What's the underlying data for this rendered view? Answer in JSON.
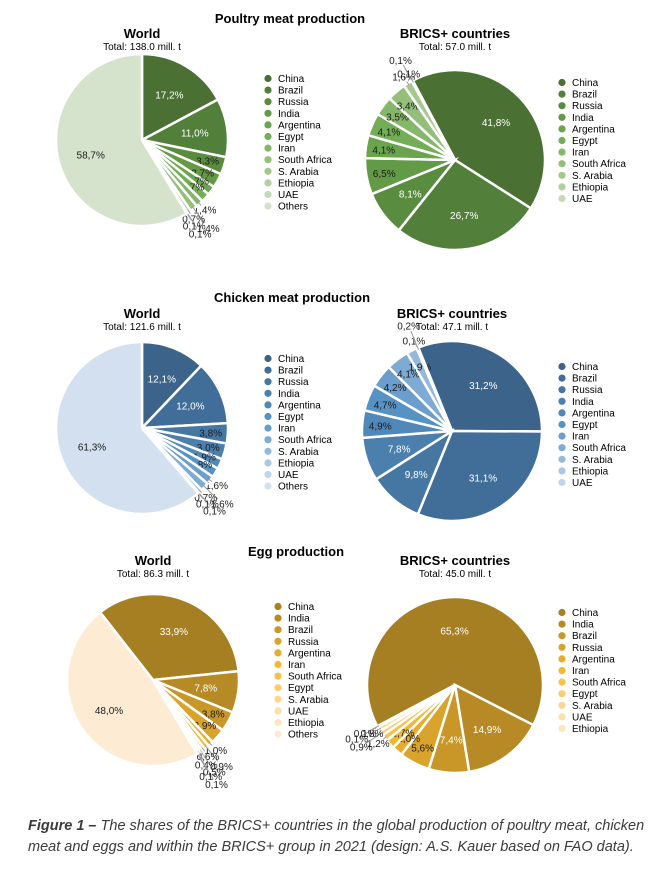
{
  "caption": {
    "label": "Figure 1 –",
    "text": " The shares of the BRICS+ countries in the global production of poultry meat, chicken meat and eggs and within the BRICS+ group in 2021 (design: A.S. Kauer based on FAO data)."
  },
  "chart_data": [
    {
      "type": "pie",
      "section": "Poultry meat production",
      "title": "World",
      "subtitle": "Total: 138.0 mill. t",
      "categories": [
        "China",
        "Brazil",
        "Russia",
        "India",
        "Argentina",
        "Egypt",
        "Iran",
        "South Africa",
        "S. Arabia",
        "Ethiopia",
        "UAE",
        "Others"
      ],
      "values": [
        17.2,
        11.0,
        3.3,
        2.7,
        1.7,
        1.7,
        1.4,
        1.4,
        0.7,
        0.1,
        0.1,
        58.7
      ],
      "labels": [
        "17,2%",
        "11,0%",
        "3,3%",
        "2,7%",
        "1,7%",
        "1,7%",
        "1,4%",
        "1,4%",
        "0,7%",
        "0,1%",
        "0,1%",
        "58,7%"
      ],
      "colors": [
        "#4a7034",
        "#52803a",
        "#5a8c3f",
        "#639a45",
        "#6aa44b",
        "#73ad55",
        "#84b767",
        "#93bf7a",
        "#a3c98c",
        "#b3d1a0",
        "#c4dbb5",
        "#d5e2cc"
      ],
      "legend": "right"
    },
    {
      "type": "pie",
      "section": "Poultry meat production",
      "title": "BRICS+ countries",
      "subtitle": "Total: 57.0 mill. t",
      "categories": [
        "China",
        "Brazil",
        "Russia",
        "India",
        "Argentina",
        "Egypt",
        "Iran",
        "South Africa",
        "S. Arabia",
        "Ethiopia",
        "UAE"
      ],
      "values": [
        41.8,
        26.7,
        8.1,
        6.5,
        4.1,
        4.1,
        3.5,
        3.4,
        1.6,
        0.1,
        0.1
      ],
      "labels": [
        "41,8%",
        "26,7%",
        "8,1%",
        "6,5%",
        "4,1%",
        "4,1%",
        "3,5%",
        "3,4%",
        "1,6%",
        "0,1%",
        "0,1%"
      ],
      "colors": [
        "#4a7034",
        "#52803a",
        "#5a8c3f",
        "#639a45",
        "#6aa44b",
        "#73ad55",
        "#84b767",
        "#93bf7a",
        "#a3c98c",
        "#b3d1a0",
        "#c4dbb5"
      ],
      "legend": "right"
    },
    {
      "type": "pie",
      "section": "Chicken meat production",
      "title": "World",
      "subtitle": "Total: 121.6 mill. t",
      "categories": [
        "China",
        "Brazil",
        "Russia",
        "India",
        "Argentina",
        "Egypt",
        "Iran",
        "South Africa",
        "S. Arabia",
        "Ethiopia",
        "UAE",
        "Others"
      ],
      "values": [
        12.1,
        12.0,
        3.8,
        3.0,
        1.9,
        1.8,
        1.6,
        1.6,
        0.7,
        0.1,
        0.1,
        61.3
      ],
      "labels": [
        "12,1%",
        "12,0%",
        "3,8%",
        "3,0%",
        "1,9%",
        "1,8%",
        "1,6%",
        "1,6%",
        "0,7%",
        "0,1%",
        "0,1%",
        "61,3%"
      ],
      "colors": [
        "#3c6389",
        "#416e98",
        "#4677a3",
        "#4b80ae",
        "#5088ba",
        "#5792c4",
        "#6a9ecc",
        "#7eabd3",
        "#94badb",
        "#a9c7e2",
        "#bed5e9",
        "#d2e0ef"
      ],
      "legend": "right"
    },
    {
      "type": "pie",
      "section": "Chicken meat production",
      "title": "BRICS+ countries",
      "subtitle": "Total: 47.1 mill. t",
      "categories": [
        "China",
        "Brazil",
        "Russia",
        "India",
        "Argentina",
        "Egypt",
        "Iran",
        "South Africa",
        "S. Arabia",
        "Ethiopia",
        "UAE"
      ],
      "values": [
        31.2,
        31.1,
        9.8,
        7.8,
        4.9,
        4.7,
        4.2,
        4.1,
        1.9,
        0.1,
        0.2
      ],
      "labels": [
        "31,2%",
        "31,1%",
        "9,8%",
        "7,8%",
        "4,9%",
        "4,7%",
        "4,2%",
        "4,1%",
        "1,9%",
        "0,1%",
        "0,2%"
      ],
      "colors": [
        "#3c6389",
        "#416e98",
        "#4677a3",
        "#4b80ae",
        "#5088ba",
        "#5792c4",
        "#6a9ecc",
        "#7eabd3",
        "#94badb",
        "#a9c7e2",
        "#bed5e9"
      ],
      "legend": "right"
    },
    {
      "type": "pie",
      "section": "Egg production",
      "title": "World",
      "subtitle": "Total: 86.3 mill. t",
      "categories": [
        "China",
        "India",
        "Brazil",
        "Russia",
        "Argentina",
        "Iran",
        "South Africa",
        "Egypt",
        "S. Arabia",
        "UAE",
        "Ethiopia",
        "Others"
      ],
      "values": [
        33.9,
        7.8,
        3.8,
        2.9,
        1.0,
        0.9,
        0.6,
        0.5,
        0.4,
        0.1,
        0.1,
        48.0
      ],
      "labels": [
        "33,9%",
        "7,8%",
        "3,8%",
        "2,9%",
        "1,0%",
        "0,9%",
        "0,6%",
        "0,5%",
        "0,4%",
        "0,1%",
        "0,1%",
        "48,0%"
      ],
      "colors": [
        "#a67f22",
        "#b88a25",
        "#c99628",
        "#daa32b",
        "#e5ac30",
        "#f2b830",
        "#f8c24a",
        "#fbcd70",
        "#fcd690",
        "#fddfaa",
        "#fde6bf",
        "#fdebd3"
      ],
      "legend": "right"
    },
    {
      "type": "pie",
      "section": "Egg production",
      "title": "BRICS+ countries",
      "subtitle": "Total: 45.0 mill. t",
      "categories": [
        "China",
        "India",
        "Brazil",
        "Russia",
        "Argentina",
        "Iran",
        "South Africa",
        "Egypt",
        "S. Arabia",
        "UAE",
        "Ethiopia"
      ],
      "values": [
        65.3,
        14.9,
        7.4,
        5.6,
        2.0,
        1.7,
        1.2,
        0.9,
        0.8,
        0.1,
        0.1
      ],
      "labels": [
        "65,3%",
        "14,9%",
        "7,4%",
        "5,6%",
        "2,0%",
        "1,7%",
        "1,2%",
        "0,9%",
        "0,8%",
        "0,1%",
        "0,1%"
      ],
      "colors": [
        "#a67f22",
        "#b88a25",
        "#c99628",
        "#daa32b",
        "#e5ac30",
        "#f2b830",
        "#f8c24a",
        "#fbcd70",
        "#fcd690",
        "#fddfaa",
        "#fde6bf"
      ],
      "legend": "right"
    }
  ]
}
